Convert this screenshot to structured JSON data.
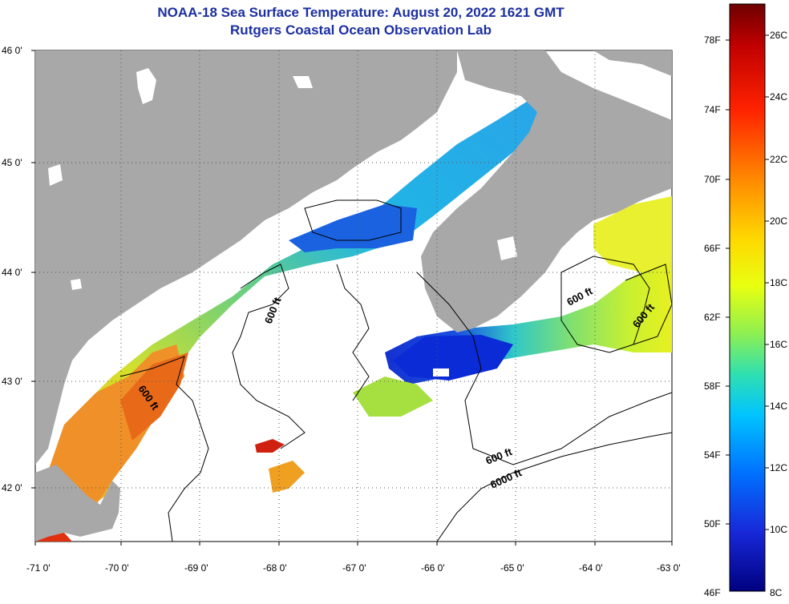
{
  "title": {
    "line1": "NOAA-18 Sea Surface Temperature:  August 20, 2022 1621 GMT",
    "line2": "Rutgers Coastal Ocean Observation Lab"
  },
  "axes": {
    "lon_labels": [
      "-71 0'",
      "-70 0'",
      "-69 0'",
      "-68 0'",
      "-67 0'",
      "-66 0'",
      "-65 0'",
      "-64 0'",
      "-63 0'"
    ],
    "lat_labels": [
      "46 0'",
      "45 0'",
      "44 0'",
      "43 0'",
      "42 0'"
    ],
    "lon_range": [
      -71,
      -63
    ],
    "lat_range": [
      41.5,
      46
    ]
  },
  "colorbar": {
    "fahrenheit": [
      "78F",
      "74F",
      "70F",
      "66F",
      "62F",
      "58F",
      "54F",
      "50F",
      "46F"
    ],
    "celsius": [
      "26C",
      "24C",
      "22C",
      "20C",
      "18C",
      "16C",
      "14C",
      "12C",
      "10C",
      "8C"
    ],
    "colors": [
      "#7a0000",
      "#c40000",
      "#ff2a00",
      "#ff7a00",
      "#ffc000",
      "#f6ff00",
      "#a0f040",
      "#30e0b0",
      "#00c8ff",
      "#0080ff",
      "#1a30e0",
      "#00008c"
    ]
  },
  "contours": {
    "labels": [
      "600 ft",
      "600 ft",
      "600 ft",
      "600 ft",
      "600 ft",
      "6000 ft"
    ]
  },
  "colors": {
    "land": "#a8a8a8",
    "title": "#1c2fa0",
    "grid": "#333333"
  }
}
